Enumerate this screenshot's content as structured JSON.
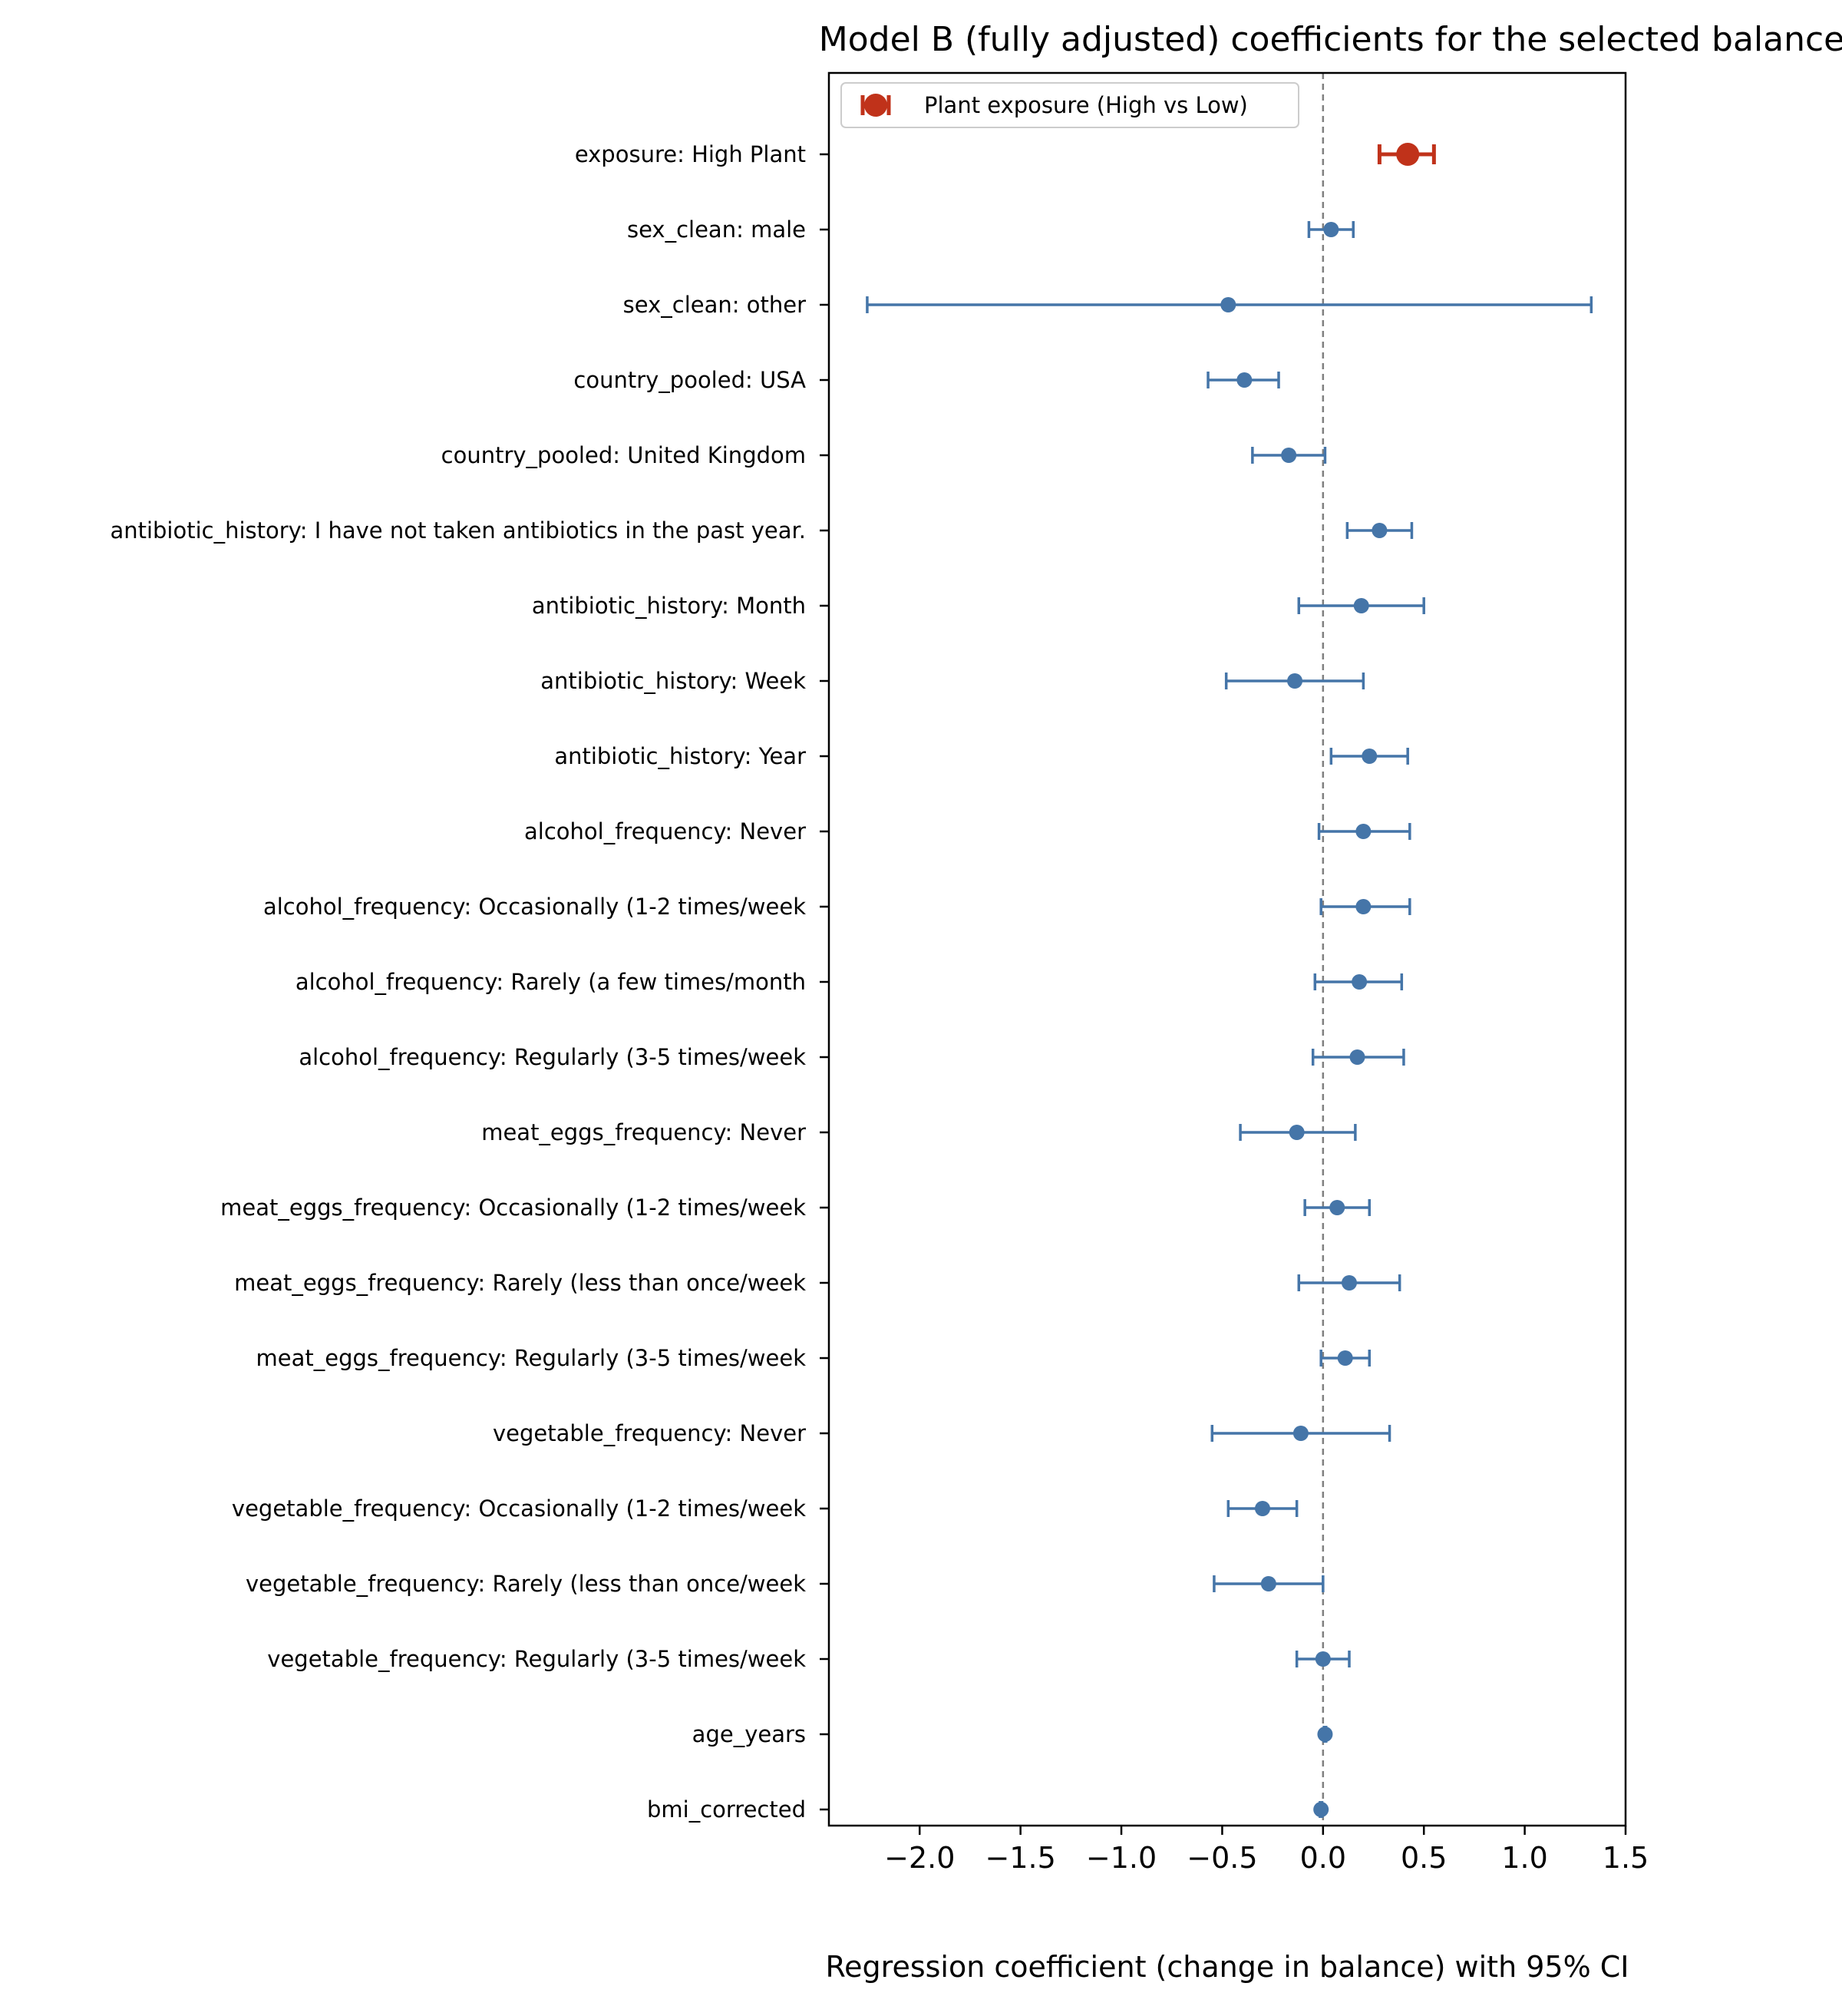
{
  "chart_data": {
    "type": "scatter",
    "subtype": "coefficient-plot-with-ci",
    "title": "Model B (fully adjusted) coefficients for the selected balance",
    "xlabel": "Regression coefficient (change in balance) with 95% CI",
    "ylabel": "",
    "xlim": [
      -2.45,
      1.5
    ],
    "xticks": [
      -2.0,
      -1.5,
      -1.0,
      -0.5,
      0.0,
      0.5,
      1.0,
      1.5
    ],
    "xtick_labels": [
      "−2.0",
      "−1.5",
      "−1.0",
      "−0.5",
      "0.0",
      "0.5",
      "1.0",
      "1.5"
    ],
    "reference_line_x": 0,
    "grid": false,
    "legend": {
      "placement": "top-left",
      "entries": [
        {
          "label": "Plant exposure (High vs Low)",
          "color": "#c0321a"
        }
      ]
    },
    "colors": {
      "exposure": "#c0321a",
      "covariate": "#4575a8",
      "reference": "#808080"
    },
    "terms": [
      {
        "label": "exposure: High Plant",
        "estimate": 0.42,
        "ci_low": 0.28,
        "ci_high": 0.55,
        "highlight": true
      },
      {
        "label": "sex_clean: male",
        "estimate": 0.04,
        "ci_low": -0.07,
        "ci_high": 0.15
      },
      {
        "label": "sex_clean: other",
        "estimate": -0.47,
        "ci_low": -2.26,
        "ci_high": 1.33
      },
      {
        "label": "country_pooled: USA",
        "estimate": -0.39,
        "ci_low": -0.57,
        "ci_high": -0.22
      },
      {
        "label": "country_pooled: United Kingdom",
        "estimate": -0.17,
        "ci_low": -0.35,
        "ci_high": 0.01
      },
      {
        "label": "antibiotic_history: I have not taken antibiotics in the past year.",
        "estimate": 0.28,
        "ci_low": 0.12,
        "ci_high": 0.44
      },
      {
        "label": "antibiotic_history: Month",
        "estimate": 0.19,
        "ci_low": -0.12,
        "ci_high": 0.5
      },
      {
        "label": "antibiotic_history: Week",
        "estimate": -0.14,
        "ci_low": -0.48,
        "ci_high": 0.2
      },
      {
        "label": "antibiotic_history: Year",
        "estimate": 0.23,
        "ci_low": 0.04,
        "ci_high": 0.42
      },
      {
        "label": "alcohol_frequency: Never",
        "estimate": 0.2,
        "ci_low": -0.02,
        "ci_high": 0.43
      },
      {
        "label": "alcohol_frequency: Occasionally (1-2 times/week",
        "estimate": 0.2,
        "ci_low": -0.01,
        "ci_high": 0.43
      },
      {
        "label": "alcohol_frequency: Rarely (a few times/month",
        "estimate": 0.18,
        "ci_low": -0.04,
        "ci_high": 0.39
      },
      {
        "label": "alcohol_frequency: Regularly (3-5 times/week",
        "estimate": 0.17,
        "ci_low": -0.05,
        "ci_high": 0.4
      },
      {
        "label": "meat_eggs_frequency: Never",
        "estimate": -0.13,
        "ci_low": -0.41,
        "ci_high": 0.16
      },
      {
        "label": "meat_eggs_frequency: Occasionally (1-2 times/week",
        "estimate": 0.07,
        "ci_low": -0.09,
        "ci_high": 0.23
      },
      {
        "label": "meat_eggs_frequency: Rarely (less than once/week",
        "estimate": 0.13,
        "ci_low": -0.12,
        "ci_high": 0.38
      },
      {
        "label": "meat_eggs_frequency: Regularly (3-5 times/week",
        "estimate": 0.11,
        "ci_low": -0.01,
        "ci_high": 0.23
      },
      {
        "label": "vegetable_frequency: Never",
        "estimate": -0.11,
        "ci_low": -0.55,
        "ci_high": 0.33
      },
      {
        "label": "vegetable_frequency: Occasionally (1-2 times/week",
        "estimate": -0.3,
        "ci_low": -0.47,
        "ci_high": -0.13
      },
      {
        "label": "vegetable_frequency: Rarely (less than once/week",
        "estimate": -0.27,
        "ci_low": -0.54,
        "ci_high": 0.0
      },
      {
        "label": "vegetable_frequency: Regularly (3-5 times/week",
        "estimate": 0.0,
        "ci_low": -0.13,
        "ci_high": 0.13
      },
      {
        "label": "age_years",
        "estimate": 0.01,
        "ci_low": 0.005,
        "ci_high": 0.015
      },
      {
        "label": "bmi_corrected",
        "estimate": -0.01,
        "ci_low": -0.015,
        "ci_high": -0.005
      }
    ]
  }
}
